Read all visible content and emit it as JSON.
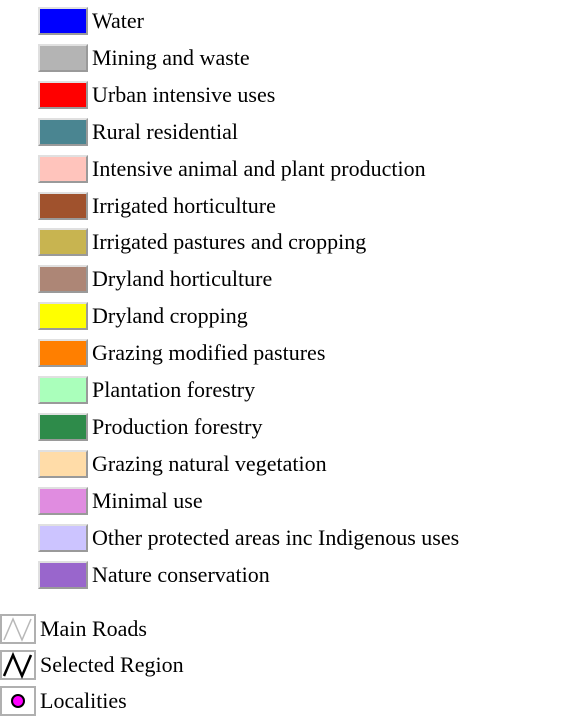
{
  "legend": {
    "classes": [
      {
        "label": "Water",
        "color": "#0000ff"
      },
      {
        "label": "Mining and waste",
        "color": "#b4b4b4"
      },
      {
        "label": "Urban intensive uses",
        "color": "#ff0000"
      },
      {
        "label": "Rural residential",
        "color": "#4a8591"
      },
      {
        "label": "Intensive animal and plant production",
        "color": "#ffc4bc"
      },
      {
        "label": "Irrigated horticulture",
        "color": "#a0522d"
      },
      {
        "label": "Irrigated pastures and cropping",
        "color": "#c8b450"
      },
      {
        "label": "Dryland horticulture",
        "color": "#ad8676"
      },
      {
        "label": "Dryland cropping",
        "color": "#ffff00"
      },
      {
        "label": "Grazing modified pastures",
        "color": "#ff7f00"
      },
      {
        "label": "Plantation forestry",
        "color": "#aaffbb"
      },
      {
        "label": "Production forestry",
        "color": "#2e8b4a"
      },
      {
        "label": "Grazing natural vegetation",
        "color": "#ffdca8"
      },
      {
        "label": "Minimal use",
        "color": "#e08ce0"
      },
      {
        "label": "Other protected areas inc Indigenous uses",
        "color": "#ccc4ff"
      },
      {
        "label": "Nature conservation",
        "color": "#9966cc"
      }
    ],
    "layers": [
      "Main Roads",
      "Selected Region",
      "Localities"
    ]
  }
}
